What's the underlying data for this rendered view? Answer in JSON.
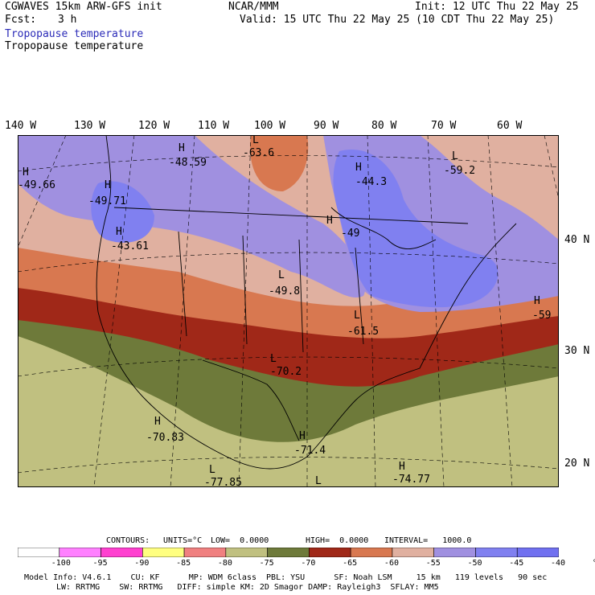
{
  "header": {
    "model": "CGWAVES 15km ARW-GFS init",
    "org": "NCAR/MMM",
    "init": "Init: 12 UTC Thu 22 May 25",
    "fcst_label": "Fcst:",
    "fcst_value": "3 h",
    "valid": "Valid: 15 UTC Thu 22 May 25 (10 CDT Thu 22 May 25)",
    "field_title_1": "Tropopause temperature",
    "field_title_2": "Tropopause temperature"
  },
  "lon_labels": [
    "140 W",
    "130 W",
    "120 W",
    "110 W",
    "100 W",
    "90 W",
    "80 W",
    "70 W",
    "60 W"
  ],
  "lat_labels": [
    "40 N",
    "30 N",
    "20 N"
  ],
  "map_annotations": [
    {
      "text": "H",
      "value": "-49.66"
    },
    {
      "text": "H",
      "value": "-48.59"
    },
    {
      "text": "L",
      "value": "-63.6"
    },
    {
      "text": "H",
      "value": "-44.3"
    },
    {
      "text": "L",
      "value": "-59.2"
    },
    {
      "text": "H",
      "value": "-49.71"
    },
    {
      "text": "H",
      "value": "-43.61"
    },
    {
      "text": "H",
      "value": "-49"
    },
    {
      "text": "L",
      "value": "-49.8"
    },
    {
      "text": "L",
      "value": "-61.5"
    },
    {
      "text": "H",
      "value": "-59"
    },
    {
      "text": "L",
      "value": "-70.2"
    },
    {
      "text": "H",
      "value": "-70.83"
    },
    {
      "text": "H",
      "value": "-71.4"
    },
    {
      "text": "L",
      "value": "-77.85"
    },
    {
      "text": "L",
      "value": ""
    },
    {
      "text": "H",
      "value": "-74.77"
    }
  ],
  "contour_info": {
    "contours": "CONTOURS:",
    "units": "UNITS=°C",
    "low": "LOW=  0.0000",
    "high": "HIGH=  0.0000",
    "interval": "INTERVAL=   1000.0"
  },
  "legend": {
    "ticks": [
      "-100",
      "-95",
      "-90",
      "-85",
      "-80",
      "-75",
      "-70",
      "-65",
      "-60",
      "-55",
      "-50",
      "-45",
      "-40",
      "°C"
    ],
    "colors": [
      "#ffffff",
      "#ff80ff",
      "#ff40d0",
      "#ffff80",
      "#f08080",
      "#c0c080",
      "#6e7a3a",
      "#a02818",
      "#d87850",
      "#e0b0a0",
      "#a090e0",
      "#8080f0",
      "#7070f0"
    ]
  },
  "footer": {
    "line1": "Model Info: V4.6.1    CU: KF      MP: WDM 6class  PBL: YSU      SF: Noah LSM     15 km   119 levels   90 sec",
    "line2": "LW: RRTMG    SW: RRTMG   DIFF: simple KM: 2D Smagor DAMP: Rayleigh3  SFLAY: MM5"
  }
}
